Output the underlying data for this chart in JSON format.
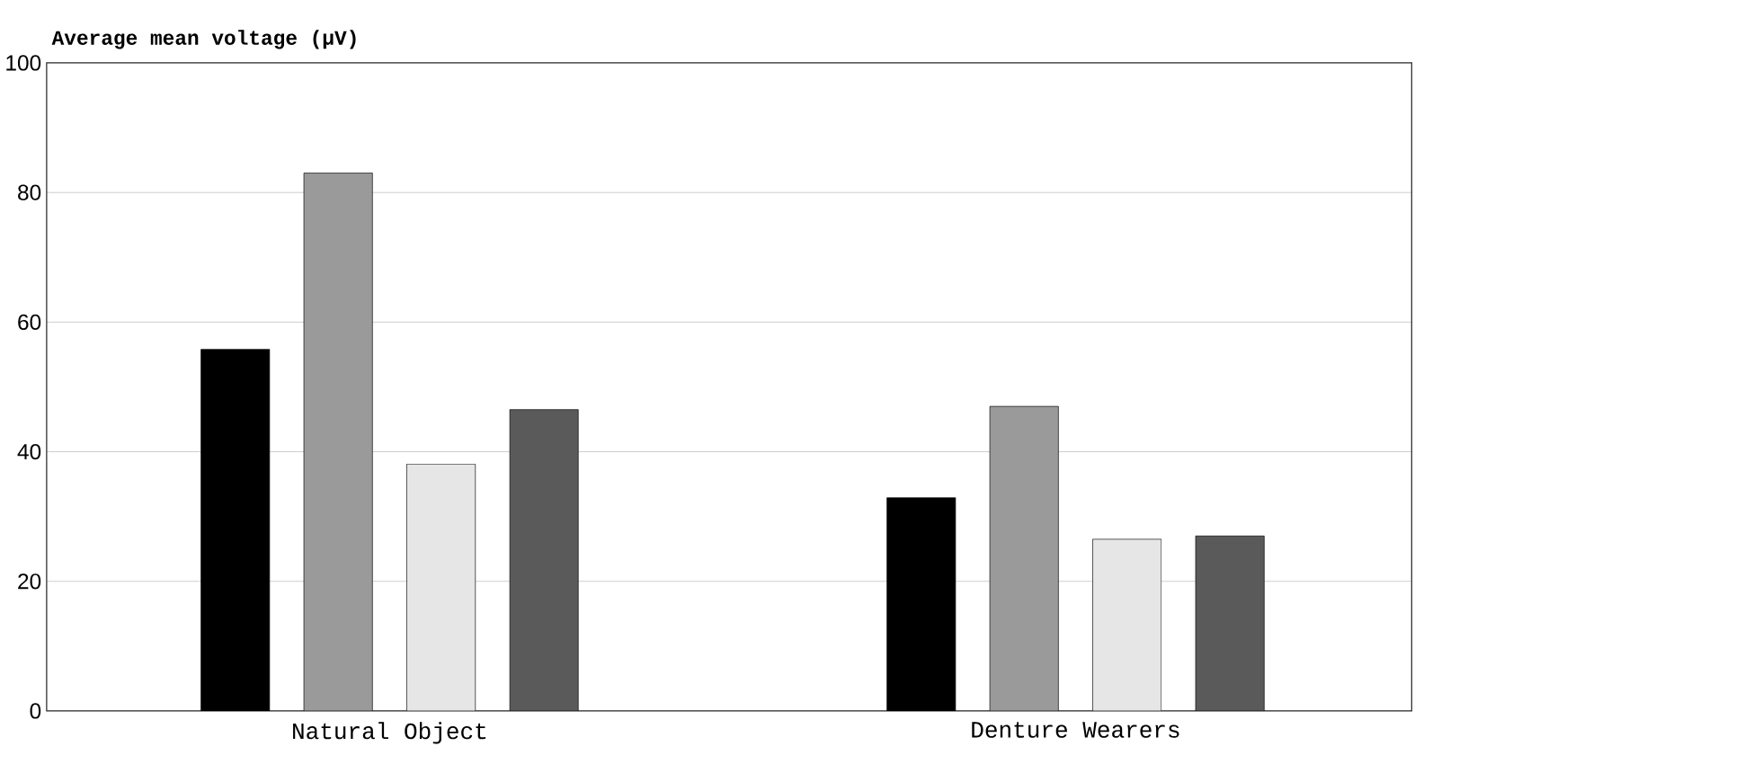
{
  "chart_data": {
    "type": "bar",
    "ylabel": "Average mean voltage (µV)",
    "categories": [
      "Natural Object",
      "Denture Wearers"
    ],
    "series": [
      {
        "color": "#000000",
        "values": [
          55.8,
          32.9
        ]
      },
      {
        "color": "#9a9a9a",
        "values": [
          83,
          47
        ]
      },
      {
        "color": "#e6e6e6",
        "values": [
          38.1,
          26.5
        ]
      },
      {
        "color": "#5a5a5a",
        "values": [
          46.5,
          27
        ]
      }
    ],
    "ylim": [
      0,
      100
    ],
    "yticks": [
      0,
      20,
      40,
      60,
      80,
      100
    ],
    "grid": "y"
  }
}
